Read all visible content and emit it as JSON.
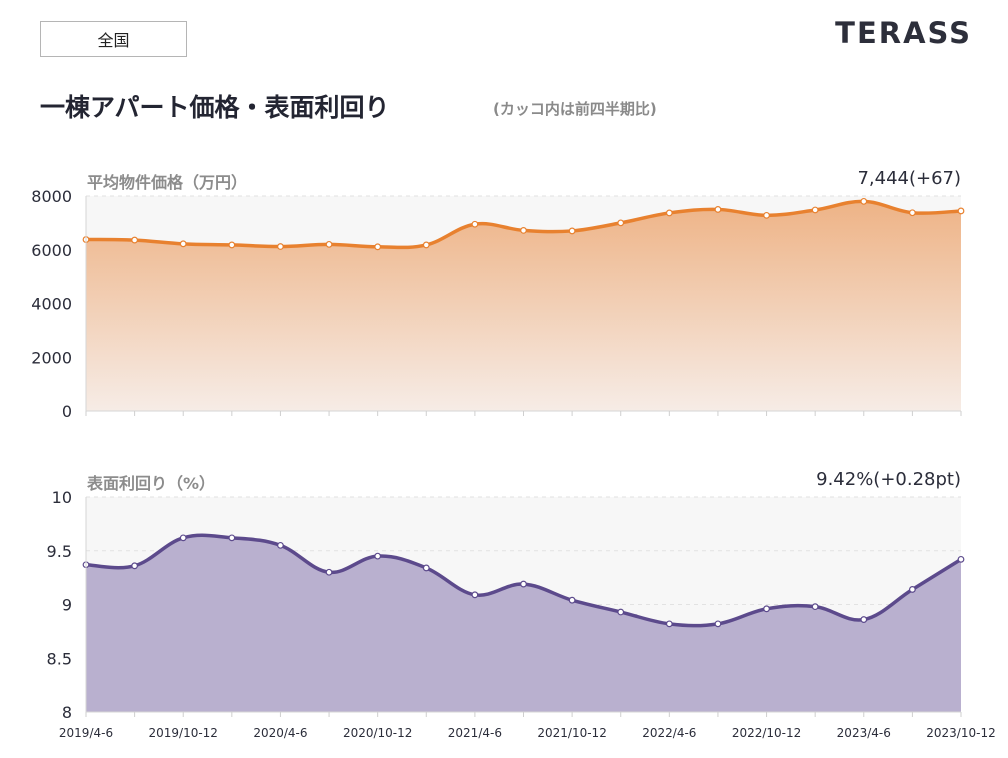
{
  "header": {
    "region": "全国",
    "logo": "TERASS",
    "title": "一棟アパート価格・表面利回り",
    "subtitle": "(カッコ内は前四半期比)"
  },
  "chart_data": [
    {
      "type": "area",
      "title": "平均物件価格（万円）",
      "current_value": "7,444(+67)",
      "ylim": [
        0,
        8000
      ],
      "yticks": [
        "8000",
        "6000",
        "4000",
        "2000",
        "0"
      ],
      "ytick_values": [
        8000,
        6000,
        4000,
        2000,
        0
      ],
      "grid": true,
      "color": "#e8812f",
      "fill_top": "#eeb386",
      "fill_bottom": "#f6ece6",
      "x": [
        "2019/4-6",
        "2019/7-9",
        "2019/10-12",
        "2020/1-3",
        "2020/4-6",
        "2020/7-9",
        "2020/10-12",
        "2021/1-3",
        "2021/4-6",
        "2021/7-9",
        "2021/10-12",
        "2022/1-3",
        "2022/4-6",
        "2022/7-9",
        "2022/10-12",
        "2023/1-3",
        "2023/4-6",
        "2023/7-9",
        "2023/10-12"
      ],
      "values": [
        6380,
        6360,
        6220,
        6180,
        6120,
        6200,
        6110,
        6180,
        6950,
        6720,
        6700,
        7000,
        7370,
        7500,
        7280,
        7480,
        7800,
        7377,
        7444
      ]
    },
    {
      "type": "area",
      "title": "表面利回り（%）",
      "current_value": "9.42%(+0.28pt)",
      "ylim": [
        8,
        10
      ],
      "yticks": [
        "10",
        "9.5",
        "9",
        "8.5",
        "8"
      ],
      "ytick_values": [
        10,
        9.5,
        9,
        8.5,
        8
      ],
      "grid": true,
      "color": "#5c4a8c",
      "fill": "#b9b0cf",
      "x": [
        "2019/4-6",
        "2019/7-9",
        "2019/10-12",
        "2020/1-3",
        "2020/4-6",
        "2020/7-9",
        "2020/10-12",
        "2021/1-3",
        "2021/4-6",
        "2021/7-9",
        "2021/10-12",
        "2022/1-3",
        "2022/4-6",
        "2022/7-9",
        "2022/10-12",
        "2023/1-3",
        "2023/4-6",
        "2023/7-9",
        "2023/10-12"
      ],
      "values": [
        9.37,
        9.36,
        9.62,
        9.62,
        9.55,
        9.3,
        9.45,
        9.34,
        9.09,
        9.19,
        9.04,
        8.93,
        8.82,
        8.82,
        8.96,
        8.98,
        8.86,
        9.14,
        9.42
      ]
    }
  ],
  "x_axis_labels": [
    "2019/4-6",
    "2019/10-12",
    "2020/4-6",
    "2020/10-12",
    "2021/4-6",
    "2021/10-12",
    "2022/4-6",
    "2022/10-12",
    "2023/4-6",
    "2023/10-12"
  ]
}
